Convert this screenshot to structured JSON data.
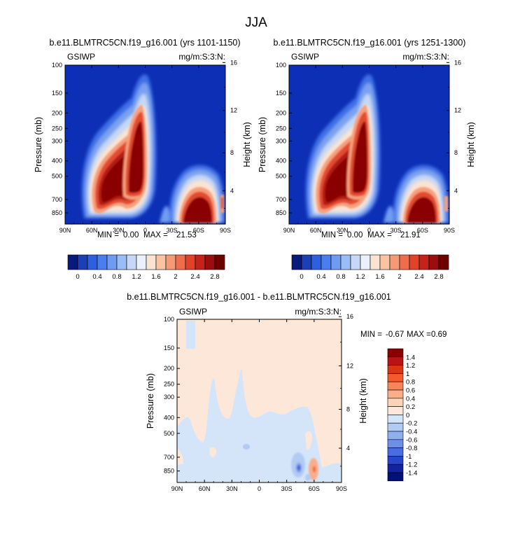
{
  "page_title": "JJA",
  "chart_data": [
    {
      "type": "heatmap",
      "title": "b.e11.BLMTRC5CN.f19_g16.001 (yrs 1101-1150)",
      "left_label": "GSIWP",
      "right_label": "mg/m:S:3:N:",
      "ylabel": "Pressure (mb)",
      "ylabel_right": "Height (km)",
      "xticks": [
        "90N",
        "60N",
        "30N",
        "0",
        "30S",
        "60S",
        "90S"
      ],
      "yticks": [
        "100",
        "150",
        "200",
        "250",
        "300",
        "400",
        "500",
        "700",
        "850"
      ],
      "yticks_right": [
        "16",
        "12",
        "8",
        "4"
      ],
      "ylim": [
        100,
        1000
      ],
      "xlim": [
        "90N",
        "90S"
      ],
      "y_scale": "log",
      "min_label": "MIN =",
      "min": "0.00",
      "max_label": "MAX =",
      "max": "21.53",
      "colorbar_levels": [
        "0",
        "0.4",
        "0.8",
        "1.2",
        "1.6",
        "2",
        "2.4",
        "2.8"
      ]
    },
    {
      "type": "heatmap",
      "title": "b.e11.BLMTRC5CN.f19_g16.001 (yrs 1251-1300)",
      "left_label": "GSIWP",
      "right_label": "mg/m:S:3:N:",
      "ylabel": "Pressure (mb)",
      "ylabel_right": "Height (km)",
      "xticks": [
        "90N",
        "60N",
        "30N",
        "0",
        "30S",
        "60S",
        "90S"
      ],
      "yticks": [
        "100",
        "150",
        "200",
        "250",
        "300",
        "400",
        "500",
        "700",
        "850"
      ],
      "yticks_right": [
        "16",
        "12",
        "8",
        "4"
      ],
      "ylim": [
        100,
        1000
      ],
      "xlim": [
        "90N",
        "90S"
      ],
      "y_scale": "log",
      "min_label": "MIN =",
      "min": "0.00",
      "max_label": "MAX =",
      "max": "21.91",
      "colorbar_levels": [
        "0",
        "0.4",
        "0.8",
        "1.2",
        "1.6",
        "2",
        "2.4",
        "2.8"
      ]
    },
    {
      "type": "heatmap",
      "title": "b.e11.BLMTRC5CN.f19_g16.001 - b.e11.BLMTRC5CN.f19_g16.001",
      "left_label": "GSIWP",
      "right_label": "mg/m:S:3:N:",
      "ylabel": "Pressure (mb)",
      "ylabel_right": "Height (km)",
      "xticks": [
        "90N",
        "60N",
        "30N",
        "0",
        "30S",
        "60S",
        "90S"
      ],
      "yticks": [
        "100",
        "150",
        "200",
        "250",
        "300",
        "400",
        "500",
        "700",
        "850"
      ],
      "yticks_right": [
        "16",
        "12",
        "8",
        "4"
      ],
      "ylim": [
        100,
        1000
      ],
      "xlim": [
        "90N",
        "90S"
      ],
      "y_scale": "log",
      "min_label": "MIN =",
      "min": "-0.67",
      "max_label": "MAX =",
      "max": "0.69",
      "colorbar_levels": [
        "1.4",
        "1.2",
        "1",
        "0.8",
        "0.6",
        "0.4",
        "0.2",
        "0",
        "-0.2",
        "-0.4",
        "-0.6",
        "-0.8",
        "-1",
        "-1.2",
        "-1.4"
      ]
    }
  ],
  "colors": {
    "seq": [
      "#0a1a7a",
      "#1c3fb8",
      "#2f5fe0",
      "#4a7ef0",
      "#6f9cf2",
      "#9bbcf4",
      "#c5d8f6",
      "#eaf1fa",
      "#fbe3d2",
      "#f9c3a4",
      "#f69a76",
      "#ef6c4c",
      "#e0432c",
      "#c4221a",
      "#9c0d0d",
      "#6f0000"
    ],
    "div": [
      "#8a0000",
      "#b81414",
      "#dd3417",
      "#f45a2e",
      "#f7855a",
      "#f9ad88",
      "#fbd4b8",
      "#fde7d8",
      "#d4e5fa",
      "#b1cbf3",
      "#8fb0ee",
      "#6d8fe6",
      "#4b6be0",
      "#2a44c9",
      "#12239d",
      "#04107a"
    ],
    "background_low": "#0d2fb5",
    "diff_pos": "#fde7d8",
    "diff_neg": "#d4e5fa"
  }
}
